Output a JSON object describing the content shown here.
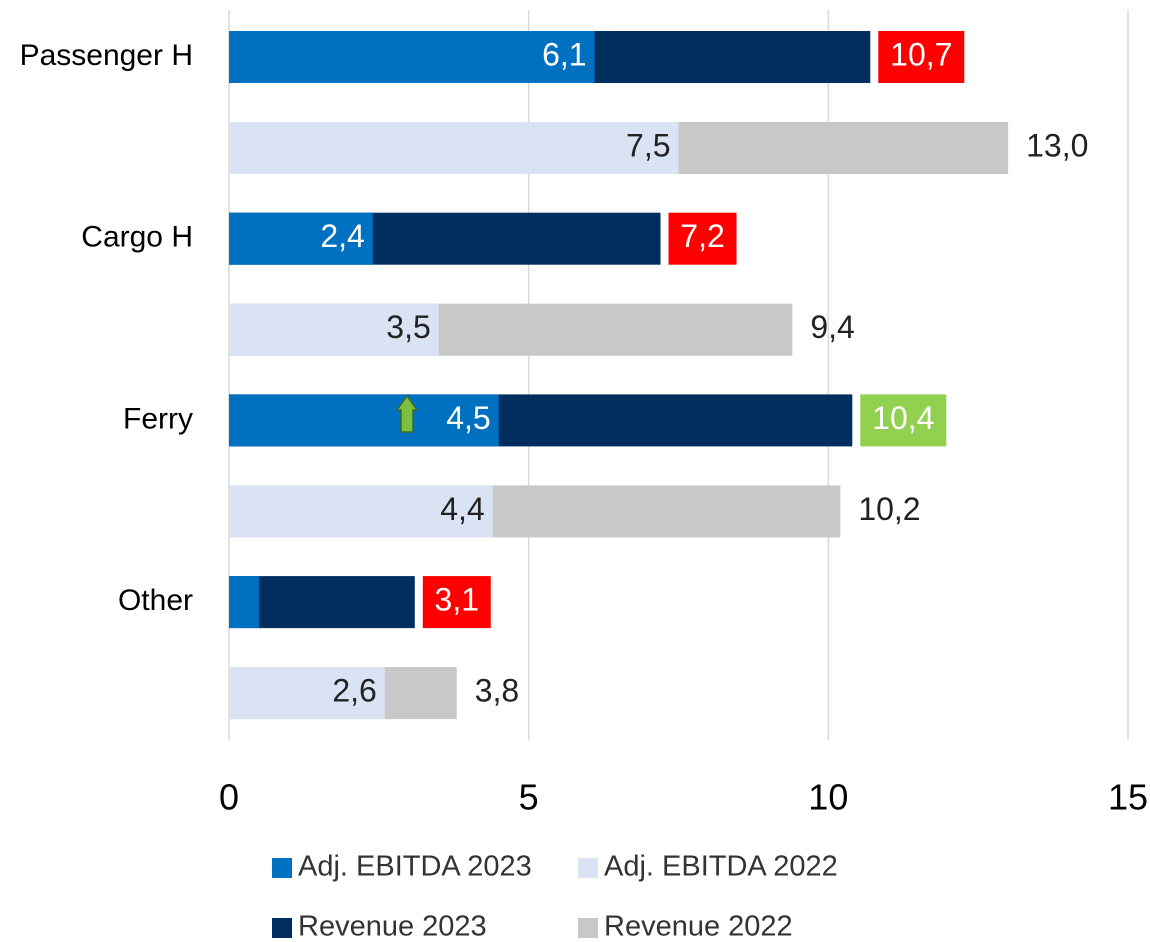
{
  "chart_data": {
    "type": "bar",
    "orientation": "horizontal",
    "categories": [
      "Passenger H",
      "Cargo H",
      "Ferry",
      "Other"
    ],
    "series": [
      {
        "name": "Adj. EBITDA 2023",
        "color": "#0070c0",
        "values": [
          6.1,
          2.4,
          4.5,
          0.5
        ],
        "value_labels": [
          "6,1",
          "2,4",
          "4,5",
          null
        ],
        "label_color": "#ffffff",
        "row": 0
      },
      {
        "name": "Adj. EBITDA 2022",
        "color": "#dae3f3",
        "values": [
          7.5,
          3.5,
          4.4,
          2.6
        ],
        "value_labels": [
          "7,5",
          "3,5",
          "4,4",
          "2,6"
        ],
        "label_color": "#222222",
        "row": 1
      },
      {
        "name": "Revenue 2023",
        "color": "#002f5f",
        "values": [
          10.7,
          7.2,
          10.4,
          3.1
        ],
        "value_labels": [
          "10,7",
          "7,2",
          "10,4",
          "3,1"
        ],
        "label_color": "#ffffff",
        "label_boxes": [
          "#ff0000",
          "#ff0000",
          "#92d050",
          "#ff0000"
        ],
        "row": 0
      },
      {
        "name": "Revenue 2022",
        "color": "#c8c8c8",
        "values": [
          13.0,
          9.4,
          10.2,
          3.8
        ],
        "value_labels": [
          "13,0",
          "9,4",
          "10,2",
          "3,8"
        ],
        "label_color": "#222222",
        "row": 1
      }
    ],
    "xlim": [
      0,
      15
    ],
    "xticks": [
      0,
      5,
      10,
      15
    ],
    "grid": true
  }
}
